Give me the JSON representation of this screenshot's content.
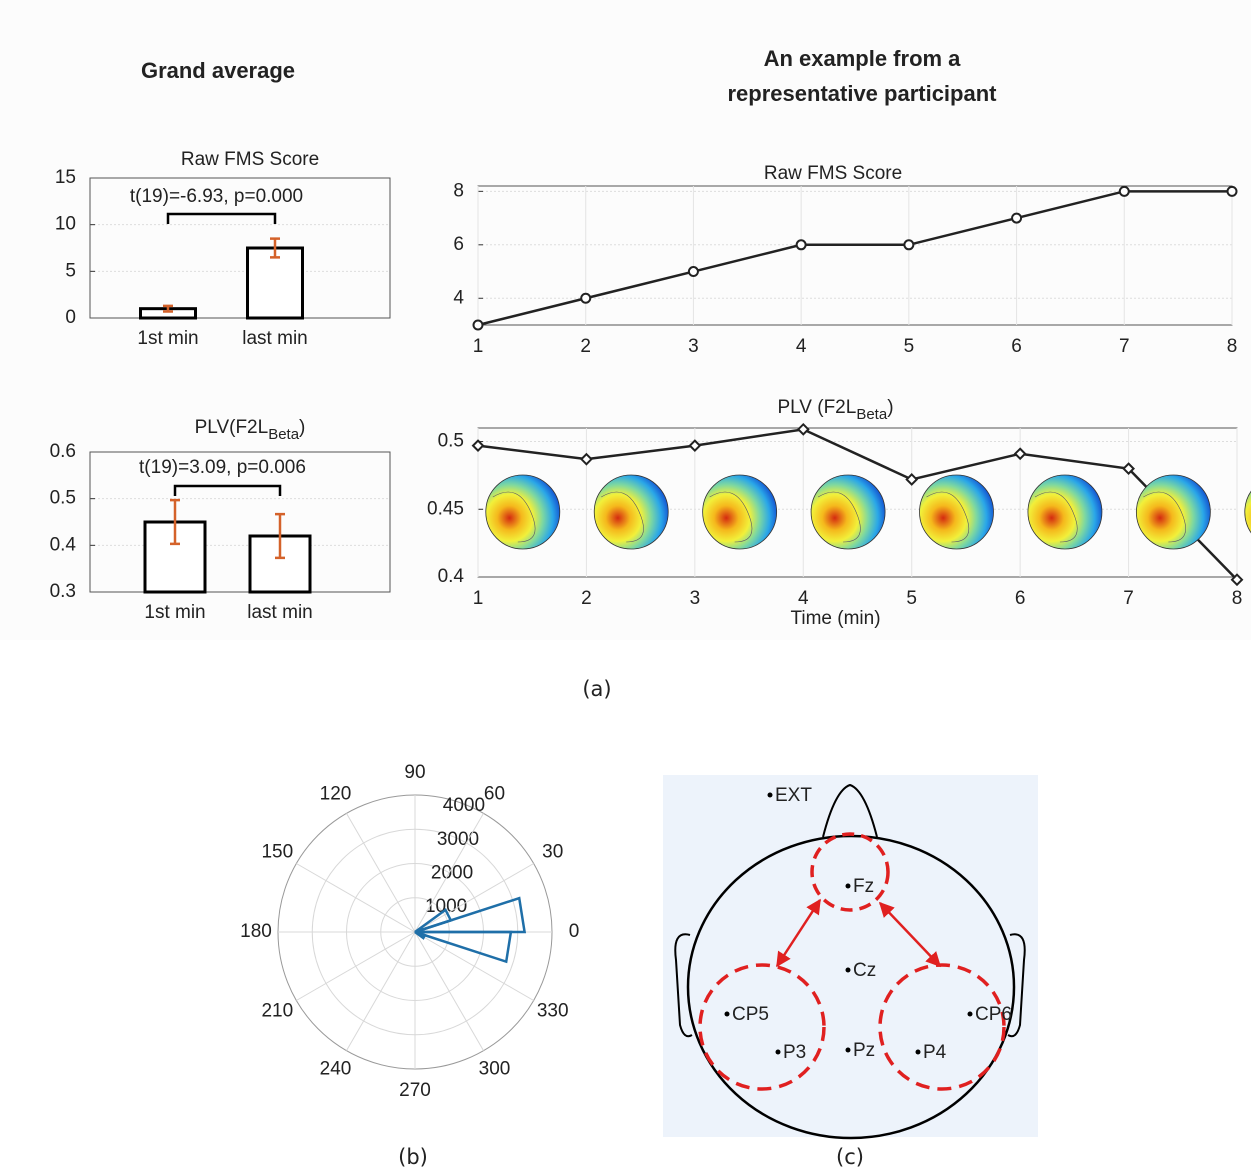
{
  "headings": {
    "left": "Grand average",
    "right": [
      "An example from a",
      "representative participant"
    ]
  },
  "panel_labels": [
    "(a)",
    "(b)",
    "(c)"
  ],
  "chart_data": [
    {
      "type": "bar",
      "title": "Raw FMS Score",
      "annotation": "t(19)=-6.93, p=0.000",
      "categories": [
        "1st min",
        "last min"
      ],
      "values": [
        1.0,
        7.5
      ],
      "errors": [
        0.3,
        1.0
      ],
      "ylim": [
        0,
        15
      ],
      "yticks": [
        0,
        5,
        10,
        15
      ],
      "grid": true,
      "color": "#000000",
      "error_color": "#d4622a"
    },
    {
      "type": "bar",
      "title": "PLV(F2L",
      "title_subscript": "Beta",
      "title_end": ")",
      "annotation": "t(19)=3.09, p=0.006",
      "categories": [
        "1st  min",
        "last min"
      ],
      "values": [
        0.45,
        0.42
      ],
      "errors": [
        0.047,
        0.047
      ],
      "ylim": [
        0.3,
        0.6
      ],
      "yticks": [
        0.3,
        0.4,
        0.5,
        0.6
      ],
      "grid": true,
      "color": "#000000",
      "error_color": "#d4622a"
    },
    {
      "type": "line",
      "title": "Raw FMS Score",
      "x": [
        1,
        2,
        3,
        4,
        5,
        6,
        7,
        8
      ],
      "values": [
        3,
        4,
        5,
        6,
        6,
        7,
        8,
        8
      ],
      "xlim": [
        1,
        8
      ],
      "xticks": [
        1,
        2,
        3,
        4,
        5,
        6,
        7,
        8
      ],
      "ylim": [
        3,
        8.2
      ],
      "yticks": [
        4,
        6,
        8
      ],
      "grid": true,
      "color": "#222222",
      "marker": "circle"
    },
    {
      "type": "line",
      "title": "PLV (F2L",
      "title_subscript": "Beta",
      "title_end": ")",
      "xlabel": "Time (min)",
      "x": [
        1,
        2,
        3,
        4,
        5,
        6,
        7,
        8
      ],
      "values": [
        0.497,
        0.487,
        0.497,
        0.509,
        0.472,
        0.491,
        0.48,
        0.398
      ],
      "xlim": [
        1,
        8
      ],
      "xticks": [
        1,
        2,
        3,
        4,
        5,
        6,
        7,
        8
      ],
      "ylim": [
        0.4,
        0.51
      ],
      "yticks": [
        0.4,
        0.45,
        0.5
      ],
      "grid": true,
      "color": "#222222",
      "marker": "diamond",
      "topomaps": true
    },
    {
      "type": "polar-histogram",
      "bins": [
        -36,
        -18,
        0,
        18,
        36
      ],
      "values": [
        300,
        2800,
        3200,
        1100
      ],
      "color": "#1f6fa8",
      "rlim": [
        0,
        4000
      ],
      "rticks": [
        1000,
        2000,
        3000,
        4000
      ],
      "angle_ticks": [
        0,
        30,
        60,
        90,
        120,
        150,
        180,
        210,
        240,
        270,
        300,
        330
      ]
    }
  ],
  "head_diagram": {
    "electrodes": [
      "EXT",
      "Fz",
      "Cz",
      "CP5",
      "P3",
      "Pz",
      "P4",
      "CP6"
    ]
  }
}
